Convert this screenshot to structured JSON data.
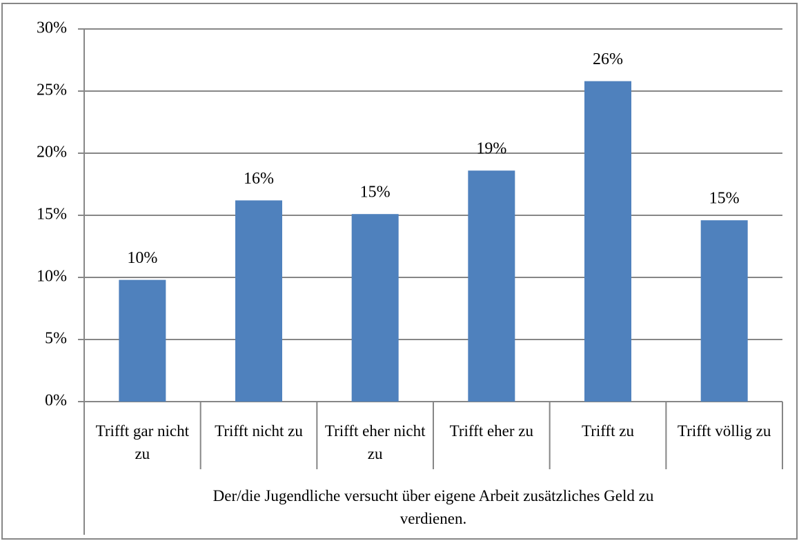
{
  "chart_data": {
    "type": "bar",
    "categories": [
      "Trifft gar nicht zu",
      "Trifft nicht zu",
      "Trifft eher nicht zu",
      "Trifft eher zu",
      "Trifft zu",
      "Trifft völlig zu"
    ],
    "values": [
      9.8,
      16.2,
      15.1,
      18.6,
      25.8,
      14.6
    ],
    "value_labels": [
      "10%",
      "16%",
      "15%",
      "19%",
      "26%",
      "15%"
    ],
    "x_label": "Der/die Jugendliche versucht über eigene Arbeit zusätzliches Geld zu verdienen.",
    "color": "#4f81bd",
    "ylim": [
      0,
      30
    ],
    "yticks": [
      {
        "value": 0,
        "label": "0%"
      },
      {
        "value": 5,
        "label": "5%"
      },
      {
        "value": 10,
        "label": "10%"
      },
      {
        "value": 15,
        "label": "15%"
      },
      {
        "value": 20,
        "label": "20%"
      },
      {
        "value": 25,
        "label": "25%"
      },
      {
        "value": 30,
        "label": "30%"
      }
    ],
    "grid": true
  }
}
